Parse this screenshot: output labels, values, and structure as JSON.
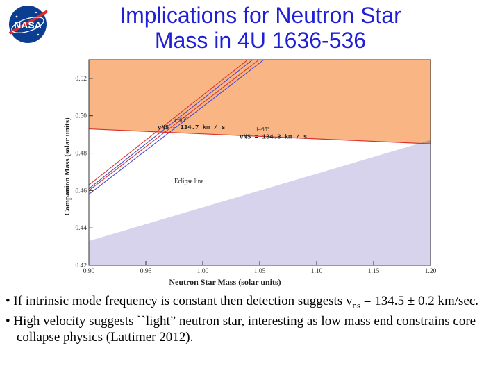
{
  "header": {
    "logo_text": "NASA",
    "title_line1": "Implications for Neutron Star",
    "title_line2": "Mass in 4U 1636-536"
  },
  "colors": {
    "title": "#1f1fd6",
    "orange_region": "#f9b583",
    "purple_region": "#d7d3ec",
    "overlap_region": "#c4937c",
    "red_line": "#d8342b",
    "blue_line": "#4a4acb",
    "nasa_blue": "#0b3d91"
  },
  "chart_data": {
    "type": "line",
    "xlabel": "Neutron Star Mass (solar units)",
    "ylabel": "Companion Mass (solar units)",
    "xlim": [
      0.9,
      1.2
    ],
    "ylim": [
      0.42,
      0.53
    ],
    "x_ticks": [
      "0.90",
      "0.95",
      "1.00",
      "1.05",
      "1.10",
      "1.15",
      "1.20"
    ],
    "x_tick_values": [
      0.9,
      0.95,
      1.0,
      1.05,
      1.1,
      1.15,
      1.2
    ],
    "y_ticks": [
      "0.42",
      "0.44",
      "0.46",
      "0.48",
      "0.50",
      "0.52"
    ],
    "y_tick_values": [
      0.42,
      0.44,
      0.46,
      0.48,
      0.5,
      0.52
    ],
    "regions": [
      {
        "name": "excluded-upper",
        "color": "orange",
        "boundary_x": [
          0.9,
          1.2
        ],
        "boundary_y": [
          0.493,
          0.485
        ]
      },
      {
        "name": "excluded-eclipse",
        "color": "purple",
        "boundary_x": [
          0.9,
          1.2
        ],
        "boundary_y": [
          0.433,
          0.487
        ]
      }
    ],
    "series": [
      {
        "name": "v_NS = 134.7 km/s (red)",
        "x": [
          0.9,
          1.05
        ],
        "y": [
          0.463,
          0.535
        ]
      },
      {
        "name": "v_NS = 134.7 km/s (blue)",
        "x": [
          0.9,
          1.05
        ],
        "y": [
          0.461,
          0.533
        ]
      },
      {
        "name": "v_NS = 134.3 km/s (red)",
        "x": [
          0.9,
          1.06
        ],
        "y": [
          0.46,
          0.535
        ]
      },
      {
        "name": "v_NS = 134.3 km/s (blue)",
        "x": [
          0.9,
          1.06
        ],
        "y": [
          0.458,
          0.533
        ]
      }
    ],
    "annotations": [
      {
        "incl": "i=65°",
        "velocity_label": "vNS = 134.7 km / s",
        "x": 0.975,
        "y": 0.497
      },
      {
        "incl": "i=65°",
        "velocity_label": "vNS = 134.3 km / s",
        "x": 1.047,
        "y": 0.492
      }
    ],
    "eclipse_label": {
      "text": "Eclipse line",
      "x": 0.975,
      "y": 0.464
    }
  },
  "bullets": [
    {
      "before_sub": "If intrinsic mode frequency is constant then detection suggests v",
      "sub": "ns",
      "after_sub": " = 134.5 ± 0.2 km/sec."
    },
    {
      "text": "High velocity suggests ``light” neutron star, interesting as low mass end constrains core collapse physics (Lattimer 2012)."
    }
  ]
}
